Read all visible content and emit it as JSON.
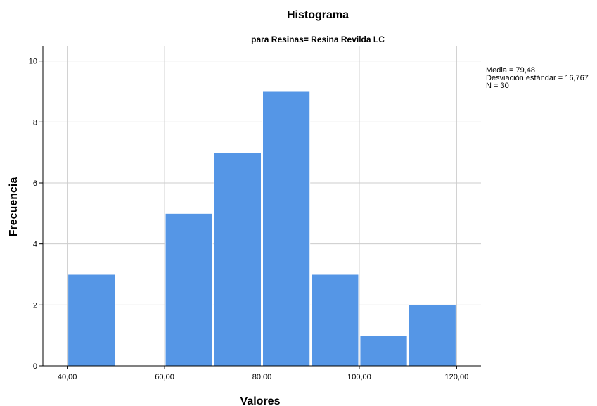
{
  "chart_data": {
    "type": "bar",
    "title": "Histograma",
    "subtitle": "para Resinas= Resina Revilda LC",
    "xlabel": "Valores",
    "ylabel": "Frecuencia",
    "x_range": [
      35,
      125
    ],
    "ylim": [
      0,
      10.5
    ],
    "x_ticks": [
      {
        "value": 40,
        "label": "40,00"
      },
      {
        "value": 60,
        "label": "60,00"
      },
      {
        "value": 80,
        "label": "80,00"
      },
      {
        "value": 100,
        "label": "100,00"
      },
      {
        "value": 120,
        "label": "120,00"
      }
    ],
    "y_ticks": [
      {
        "value": 0,
        "label": "0"
      },
      {
        "value": 2,
        "label": "2"
      },
      {
        "value": 4,
        "label": "4"
      },
      {
        "value": 6,
        "label": "6"
      },
      {
        "value": 8,
        "label": "8"
      },
      {
        "value": 10,
        "label": "10"
      }
    ],
    "bins": [
      {
        "start": 40,
        "end": 50,
        "count": 3
      },
      {
        "start": 50,
        "end": 60,
        "count": 0
      },
      {
        "start": 60,
        "end": 70,
        "count": 5
      },
      {
        "start": 70,
        "end": 80,
        "count": 7
      },
      {
        "start": 80,
        "end": 90,
        "count": 9
      },
      {
        "start": 90,
        "end": 100,
        "count": 3
      },
      {
        "start": 100,
        "end": 110,
        "count": 1
      },
      {
        "start": 110,
        "end": 120,
        "count": 2
      }
    ],
    "bar_color": "#5596e6",
    "grid": true,
    "stats_placement": "right",
    "stats": [
      "Media = 79,48",
      "Desviación estándar = 16,767",
      "N = 30"
    ]
  }
}
